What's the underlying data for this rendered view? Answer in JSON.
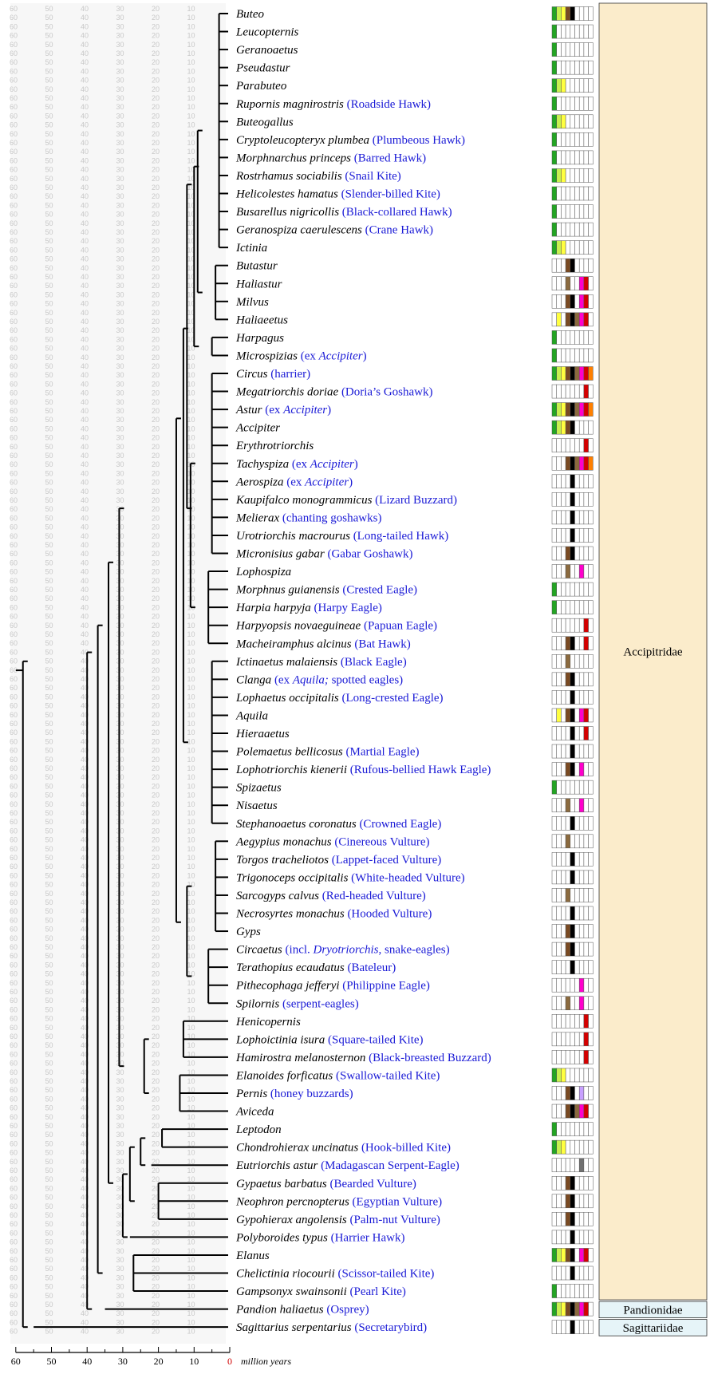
{
  "axis": {
    "ticks": [
      "60",
      "50",
      "40",
      "30",
      "20",
      "10",
      "0"
    ],
    "unit_label": "million years",
    "bg_numbers": [
      "60",
      "50",
      "40",
      "30",
      "20",
      "10"
    ]
  },
  "families": [
    {
      "name": "Accipitridae",
      "color": "#fbeccb"
    },
    {
      "name": "Pandionidae",
      "color": "#e6f4f8"
    },
    {
      "name": "Sagittariidae",
      "color": "#e6f4f8"
    }
  ],
  "trait_colors": {
    "G": "#23a523",
    "L": "#c8f050",
    "Y": "#ffff40",
    "B": "#7a4a22",
    "K": "#000000",
    "N": "#8b6a3e",
    "R": "#d40000",
    "M": "#ff00cc",
    "O": "#ff8000",
    "P": "#c8a0ff",
    "D": "#707070"
  },
  "taxa": [
    {
      "genus": "Buteo",
      "common": "",
      "ex": "",
      "traits": "GLYBK    "
    },
    {
      "genus": "Leucopternis",
      "common": "",
      "ex": "",
      "traits": "G        "
    },
    {
      "genus": "Geranoaetus",
      "common": "",
      "ex": "",
      "traits": "G        "
    },
    {
      "genus": "Pseudastur",
      "common": "",
      "ex": "",
      "traits": "G        "
    },
    {
      "genus": "Parabuteo",
      "common": "",
      "ex": "",
      "traits": "GLY      "
    },
    {
      "genus": "Rupornis magnirostris",
      "common": "(Roadside Hawk)",
      "ex": "",
      "traits": "G        "
    },
    {
      "genus": "Buteogallus",
      "common": "",
      "ex": "",
      "traits": "GLY      "
    },
    {
      "genus": "Cryptoleucopteryx plumbea",
      "common": "(Plumbeous Hawk)",
      "ex": "",
      "traits": "G        "
    },
    {
      "genus": "Morphnarchus princeps",
      "common": "(Barred Hawk)",
      "ex": "",
      "traits": "G        "
    },
    {
      "genus": "Rostrhamus sociabilis",
      "common": "(Snail Kite)",
      "ex": "",
      "traits": "GLY      "
    },
    {
      "genus": "Helicolestes hamatus",
      "common": "(Slender-billed Kite)",
      "ex": "",
      "traits": "G        "
    },
    {
      "genus": "Busarellus nigricollis",
      "common": "(Black-collared Hawk)",
      "ex": "",
      "traits": "G        "
    },
    {
      "genus": "Geranospiza caerulescens",
      "common": "(Crane Hawk)",
      "ex": "",
      "traits": "G        "
    },
    {
      "genus": "Ictinia",
      "common": "",
      "ex": "",
      "traits": "GLY      "
    },
    {
      "genus": "Butastur",
      "common": "",
      "ex": "",
      "traits": "   BK    "
    },
    {
      "genus": "Haliastur",
      "common": "",
      "ex": "",
      "traits": "   N  MR "
    },
    {
      "genus": "Milvus",
      "common": "",
      "ex": "",
      "traits": "   BK MR "
    },
    {
      "genus": "Haliaeetus",
      "common": "",
      "ex": "",
      "traits": " Y BKNMR "
    },
    {
      "genus": "Harpagus",
      "common": "",
      "ex": "",
      "traits": "G        "
    },
    {
      "genus": "Microspizias",
      "common": "(ex ",
      "ex": "Accipiter",
      "traits": "G        "
    },
    {
      "genus": "Circus",
      "common": "(harrier)",
      "ex": "",
      "traits": "GLYBKNMRO"
    },
    {
      "genus": "Megatriorchis doriae",
      "common": "(Doria’s Goshawk)",
      "ex": "",
      "traits": "       R "
    },
    {
      "genus": "Astur",
      "common": "(ex ",
      "ex": "Accipiter",
      "traits": "GLYBKNMRO"
    },
    {
      "genus": "Accipiter",
      "common": "",
      "ex": "",
      "traits": "GLYBK    "
    },
    {
      "genus": "Erythrotriorchis",
      "common": "",
      "ex": "",
      "traits": "       R "
    },
    {
      "genus": "Tachyspiza",
      "common": "(ex ",
      "ex": "Accipiter",
      "traits": "   BKNMRO"
    },
    {
      "genus": "Aerospiza",
      "common": "(ex ",
      "ex": "Accipiter",
      "traits": "    K    "
    },
    {
      "genus": "Kaupifalco monogrammicus",
      "common": "(Lizard Buzzard)",
      "ex": "",
      "traits": "    K    "
    },
    {
      "genus": "Melierax",
      "common": "(chanting goshawks)",
      "ex": "",
      "traits": "    K    "
    },
    {
      "genus": "Urotriorchis macrourus",
      "common": "(Long-tailed Hawk)",
      "ex": "",
      "traits": "    K    "
    },
    {
      "genus": "Micronisius gabar",
      "common": "(Gabar Goshawk)",
      "ex": "",
      "traits": "   BK    "
    },
    {
      "genus": "Lophospiza",
      "common": "",
      "ex": "",
      "traits": "   N  M  "
    },
    {
      "genus": "Morphnus guianensis",
      "common": "(Crested Eagle)",
      "ex": "",
      "traits": "G        "
    },
    {
      "genus": "Harpia harpyja",
      "common": "(Harpy Eagle)",
      "ex": "",
      "traits": "G        "
    },
    {
      "genus": "Harpyopsis novaeguineae",
      "common": "(Papuan Eagle)",
      "ex": "",
      "traits": "       R "
    },
    {
      "genus": "Macheiramphus alcinus",
      "common": "(Bat Hawk)",
      "ex": "",
      "traits": "   BK  R "
    },
    {
      "genus": "Ictinaetus malaiensis",
      "common": "(Black Eagle)",
      "ex": "",
      "traits": "   N     "
    },
    {
      "genus": "Clanga",
      "common": "(ex ",
      "ex": "Aquila;",
      "traits": "   BK    "
    },
    {
      "genus": "Lophaetus occipitalis",
      "common": "(Long-crested Eagle)",
      "ex": "",
      "traits": "    K    "
    },
    {
      "genus": "Aquila",
      "common": "",
      "ex": "",
      "traits": " Y BK MR "
    },
    {
      "genus": "Hieraaetus",
      "common": "",
      "ex": "",
      "traits": "    K  R "
    },
    {
      "genus": "Polemaetus bellicosus",
      "common": "(Martial Eagle)",
      "ex": "",
      "traits": "    K    "
    },
    {
      "genus": "Lophotriorchis kienerii",
      "common": "(Rufous-bellied Hawk Eagle)",
      "ex": "",
      "traits": "   BK M  "
    },
    {
      "genus": "Spizaetus",
      "common": "",
      "ex": "",
      "traits": "G        "
    },
    {
      "genus": "Nisaetus",
      "common": "",
      "ex": "",
      "traits": "   N  M  "
    },
    {
      "genus": "Stephanoaetus coronatus",
      "common": "(Crowned Eagle)",
      "ex": "",
      "traits": "    K    "
    },
    {
      "genus": "Aegypius monachus",
      "common": "(Cinereous Vulture)",
      "ex": "",
      "traits": "   N     "
    },
    {
      "genus": "Torgos tracheliotos",
      "common": "(Lappet-faced Vulture)",
      "ex": "",
      "traits": "    K    "
    },
    {
      "genus": "Trigonoceps occipitalis",
      "common": "(White-headed Vulture)",
      "ex": "",
      "traits": "    K    "
    },
    {
      "genus": "Sarcogyps calvus",
      "common": "(Red-headed Vulture)",
      "ex": "",
      "traits": "   N     "
    },
    {
      "genus": "Necrosyrtes monachus",
      "common": "(Hooded Vulture)",
      "ex": "",
      "traits": "    K    "
    },
    {
      "genus": "Gyps",
      "common": "",
      "ex": "",
      "traits": "   BK    "
    },
    {
      "genus": "Circaetus",
      "common": "(incl. ",
      "ex": "Dryotriorchis",
      "traits": "   BK    "
    },
    {
      "genus": "Terathopius ecaudatus",
      "common": "(Bateleur)",
      "ex": "",
      "traits": "    K    "
    },
    {
      "genus": "Pithecophaga jefferyi",
      "common": "(Philippine Eagle)",
      "ex": "",
      "traits": "      M  "
    },
    {
      "genus": "Spilornis",
      "common": "(serpent-eagles)",
      "ex": "",
      "traits": "   N  M  "
    },
    {
      "genus": "Henicopernis",
      "common": "",
      "ex": "",
      "traits": "       R "
    },
    {
      "genus": "Lophoictinia isura",
      "common": "(Square-tailed Kite)",
      "ex": "",
      "traits": "       R "
    },
    {
      "genus": "Hamirostra melanosternon",
      "common": "(Black-breasted Buzzard)",
      "ex": "",
      "traits": "       R "
    },
    {
      "genus": "Elanoides forficatus",
      "common": "(Swallow-tailed Kite)",
      "ex": "",
      "traits": "GLY      "
    },
    {
      "genus": "Pernis",
      "common": "(honey buzzards)",
      "ex": "",
      "traits": "   BK P  "
    },
    {
      "genus": "Aviceda",
      "common": "",
      "ex": "",
      "traits": "   BKNMR "
    },
    {
      "genus": "Leptodon",
      "common": "",
      "ex": "",
      "traits": "G        "
    },
    {
      "genus": "Chondrohierax uncinatus",
      "common": "(Hook-billed Kite)",
      "ex": "",
      "traits": "GLY      "
    },
    {
      "genus": "Eutriorchis astur",
      "common": "(Madagascan Serpent-Eagle)",
      "ex": "",
      "traits": "      D  "
    },
    {
      "genus": "Gypaetus barbatus",
      "common": "(Bearded Vulture)",
      "ex": "",
      "traits": "   BK    "
    },
    {
      "genus": "Neophron percnopterus",
      "common": "(Egyptian Vulture)",
      "ex": "",
      "traits": "   BK    "
    },
    {
      "genus": "Gypohierax angolensis",
      "common": "(Palm-nut Vulture)",
      "ex": "",
      "traits": "   BK    "
    },
    {
      "genus": "Polyboroides typus",
      "common": "(Harrier Hawk)",
      "ex": "",
      "traits": "    K    "
    },
    {
      "genus": "Elanus",
      "common": "",
      "ex": "",
      "traits": "GLYBK MR "
    },
    {
      "genus": "Chelictinia riocourii",
      "common": "(Scissor-tailed Kite)",
      "ex": "",
      "traits": "    K    "
    },
    {
      "genus": "Gampsonyx swainsonii",
      "common": "(Pearl Kite)",
      "ex": "",
      "traits": "G        "
    },
    {
      "genus": "Pandion haliaetus",
      "common": "(Osprey)",
      "ex": "",
      "traits": "GLYBKNMR "
    },
    {
      "genus": "Sagittarius serpentarius",
      "common": "(Secretarybird)",
      "ex": "",
      "traits": "    K    "
    }
  ],
  "comments": {
    "Microspizias": ")",
    "Astur": ")",
    "Tachyspiza": ")",
    "Aerospiza": ")",
    "Clanga": " spotted eagles)",
    "Circaetus": ", snake-eagles)"
  }
}
